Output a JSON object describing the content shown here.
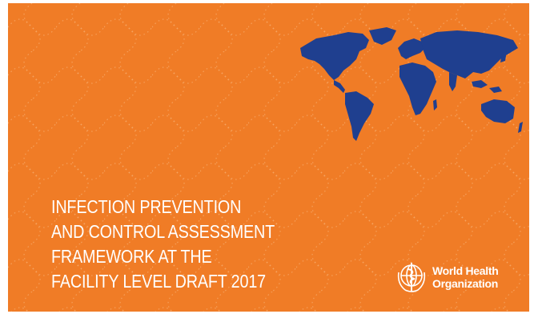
{
  "cover": {
    "background_color": "#f07c26",
    "map_color": "#1f3f8f",
    "title_lines": [
      "INFECTION PREVENTION",
      "AND CONTROL ASSESSMENT",
      "FRAMEWORK AT THE",
      "FACILITY LEVEL DRAFT 2017"
    ],
    "logo": {
      "icon": "who-emblem-icon",
      "line1": "World Health",
      "line2": "Organization"
    },
    "map_icon": "world-map-icon"
  }
}
